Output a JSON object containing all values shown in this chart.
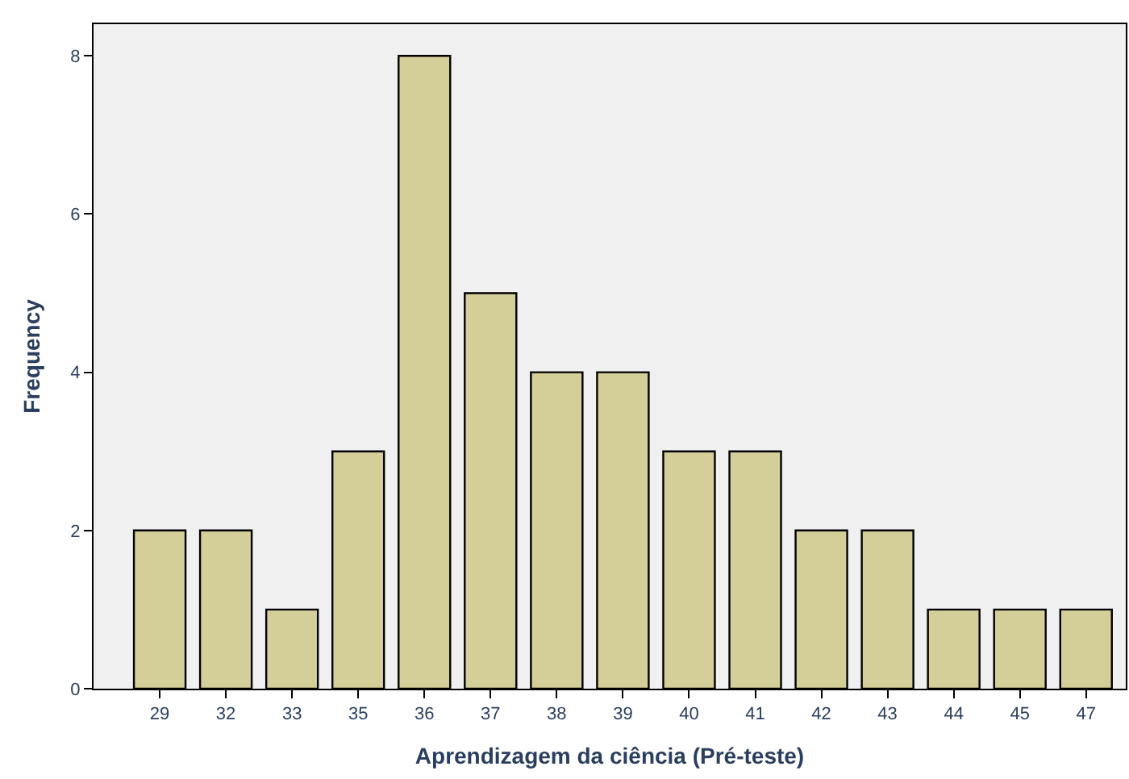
{
  "chart_data": {
    "type": "bar",
    "xlabel": "Aprendizagem da ciência (Pré-teste)",
    "ylabel": "Frequency",
    "categories": [
      "29",
      "32",
      "33",
      "35",
      "36",
      "37",
      "38",
      "39",
      "40",
      "41",
      "42",
      "43",
      "44",
      "45",
      "47"
    ],
    "values": [
      2,
      2,
      1,
      3,
      8,
      5,
      4,
      4,
      3,
      3,
      2,
      2,
      1,
      1,
      1
    ],
    "color": "#d4cf99",
    "ylim": [
      0,
      8.4
    ],
    "yticks": [
      0,
      2,
      4,
      6,
      8
    ],
    "grid": false,
    "legend": false
  }
}
